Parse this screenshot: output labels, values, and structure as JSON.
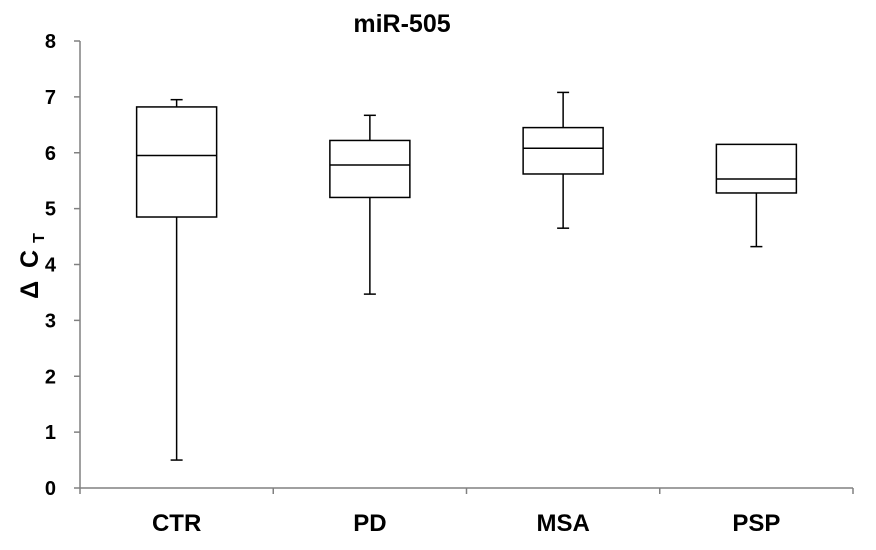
{
  "chart_data": {
    "type": "box",
    "title": "miR-505",
    "ylabel": {
      "symbol": "Δ",
      "main": "C",
      "subscript": "T"
    },
    "xlabel": "",
    "ylim": [
      0,
      8
    ],
    "yticks": [
      0,
      1,
      2,
      3,
      4,
      5,
      6,
      7,
      8
    ],
    "grid": false,
    "legend": "none",
    "categories": [
      "CTR",
      "PD",
      "MSA",
      "PSP"
    ],
    "boxes": [
      {
        "category": "CTR",
        "min": 0.5,
        "q1": 4.85,
        "median": 5.95,
        "q3": 6.82,
        "max": 6.95
      },
      {
        "category": "PD",
        "min": 3.47,
        "q1": 5.2,
        "median": 5.78,
        "q3": 6.22,
        "max": 6.67
      },
      {
        "category": "MSA",
        "min": 4.65,
        "q1": 5.62,
        "median": 6.08,
        "q3": 6.45,
        "max": 7.08
      },
      {
        "category": "PSP",
        "min": 4.32,
        "q1": 5.28,
        "median": 5.53,
        "q3": 6.15,
        "max": 6.15
      }
    ],
    "colors": {
      "box_fill": "#ffffff",
      "stroke": "#000000",
      "axis": "#808080"
    }
  }
}
